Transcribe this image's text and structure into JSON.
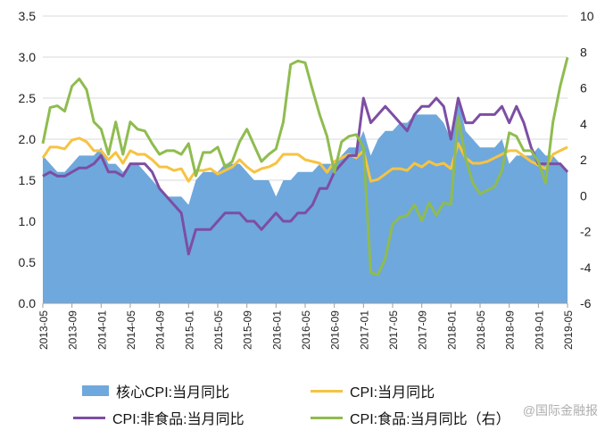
{
  "chart_data": {
    "type": "line",
    "categories": [
      "2013-05",
      "2013-06",
      "2013-07",
      "2013-08",
      "2013-09",
      "2013-10",
      "2013-11",
      "2013-12",
      "2014-01",
      "2014-02",
      "2014-03",
      "2014-04",
      "2014-05",
      "2014-06",
      "2014-07",
      "2014-08",
      "2014-09",
      "2014-10",
      "2014-11",
      "2014-12",
      "2015-01",
      "2015-02",
      "2015-03",
      "2015-04",
      "2015-05",
      "2015-06",
      "2015-07",
      "2015-08",
      "2015-09",
      "2015-10",
      "2015-11",
      "2015-12",
      "2016-01",
      "2016-02",
      "2016-03",
      "2016-04",
      "2016-05",
      "2016-06",
      "2016-07",
      "2016-08",
      "2016-09",
      "2016-10",
      "2016-11",
      "2016-12",
      "2017-01",
      "2017-02",
      "2017-03",
      "2017-04",
      "2017-05",
      "2017-06",
      "2017-07",
      "2017-08",
      "2017-09",
      "2017-10",
      "2017-11",
      "2017-12",
      "2018-01",
      "2018-02",
      "2018-03",
      "2018-04",
      "2018-05",
      "2018-06",
      "2018-07",
      "2018-08",
      "2018-09",
      "2018-10",
      "2018-11",
      "2018-12",
      "2019-01",
      "2019-02",
      "2019-03",
      "2019-04",
      "2019-05"
    ],
    "x_tick_labels": [
      "2013-05",
      "2013-09",
      "2014-01",
      "2014-05",
      "2014-09",
      "2015-01",
      "2015-05",
      "2015-09",
      "2016-01",
      "2016-05",
      "2016-09",
      "2017-01",
      "2017-05",
      "2017-09",
      "2018-01",
      "2018-05",
      "2018-09",
      "2019-01",
      "2019-05"
    ],
    "y_left": {
      "range": [
        0,
        3.5
      ],
      "ticks": [
        "0.0",
        "0.5",
        "1.0",
        "1.5",
        "2.0",
        "2.5",
        "3.0",
        "3.5"
      ]
    },
    "y_right": {
      "range": [
        -6,
        10
      ],
      "ticks": [
        "-6",
        "-4",
        "-2",
        "0",
        "2",
        "4",
        "6",
        "8",
        "10"
      ]
    },
    "grid": "horizontal",
    "legend_position": "bottom",
    "series": [
      {
        "name": "核心CPI:当月同比",
        "kind": "area",
        "axis": "left",
        "color": "#6fa8dc",
        "values": [
          1.8,
          1.7,
          1.6,
          1.6,
          1.7,
          1.8,
          1.8,
          1.8,
          1.9,
          1.7,
          1.7,
          1.6,
          1.7,
          1.7,
          1.6,
          1.5,
          1.4,
          1.3,
          1.3,
          1.3,
          1.2,
          1.5,
          1.6,
          1.6,
          1.6,
          1.7,
          1.7,
          1.7,
          1.6,
          1.5,
          1.5,
          1.5,
          1.3,
          1.5,
          1.5,
          1.6,
          1.6,
          1.6,
          1.7,
          1.7,
          1.7,
          1.8,
          1.9,
          1.9,
          2.1,
          1.8,
          2.0,
          2.1,
          2.1,
          2.2,
          2.2,
          2.3,
          2.3,
          2.3,
          2.3,
          2.2,
          2.0,
          2.5,
          2.1,
          2.0,
          1.9,
          1.9,
          1.9,
          2.0,
          1.7,
          1.8,
          1.8,
          1.8,
          1.9,
          1.8,
          1.8,
          1.7,
          1.6
        ]
      },
      {
        "name": "CPI:当月同比",
        "kind": "line",
        "axis": "right",
        "color": "#f6c342",
        "values": [
          2.1,
          2.7,
          2.7,
          2.6,
          3.1,
          3.2,
          3.0,
          2.5,
          2.5,
          2.0,
          2.4,
          1.8,
          2.5,
          2.3,
          2.3,
          2.0,
          1.6,
          1.6,
          1.4,
          1.5,
          0.8,
          1.4,
          1.4,
          1.5,
          1.2,
          1.4,
          1.6,
          2.0,
          1.6,
          1.3,
          1.5,
          1.6,
          1.8,
          2.3,
          2.3,
          2.3,
          2.0,
          1.9,
          1.8,
          1.3,
          1.9,
          2.1,
          2.3,
          2.1,
          2.5,
          0.8,
          0.9,
          1.2,
          1.5,
          1.5,
          1.4,
          1.8,
          1.6,
          1.9,
          1.7,
          1.8,
          1.5,
          2.9,
          2.1,
          1.8,
          1.8,
          1.9,
          2.1,
          2.3,
          2.5,
          2.5,
          2.2,
          1.9,
          1.7,
          1.5,
          2.3,
          2.5,
          2.7
        ]
      },
      {
        "name": "CPI:非食品:当月同比",
        "kind": "line",
        "axis": "left",
        "color": "#7d4ea3",
        "values": [
          1.55,
          1.6,
          1.55,
          1.55,
          1.6,
          1.65,
          1.65,
          1.7,
          1.8,
          1.6,
          1.6,
          1.55,
          1.7,
          1.7,
          1.7,
          1.6,
          1.4,
          1.3,
          1.2,
          1.1,
          0.6,
          0.9,
          0.9,
          0.9,
          1.0,
          1.1,
          1.1,
          1.1,
          1.0,
          1.0,
          0.9,
          1.0,
          1.1,
          1.0,
          1.0,
          1.1,
          1.1,
          1.2,
          1.4,
          1.4,
          1.6,
          1.7,
          1.8,
          1.8,
          2.5,
          2.2,
          2.3,
          2.4,
          2.3,
          2.2,
          2.1,
          2.3,
          2.4,
          2.4,
          2.5,
          2.4,
          2.0,
          2.5,
          2.2,
          2.2,
          2.3,
          2.3,
          2.3,
          2.4,
          2.2,
          2.4,
          2.2,
          1.9,
          1.7,
          1.7,
          1.7,
          1.7,
          1.6
        ]
      },
      {
        "name": "CPI:食品:当月同比（右）",
        "kind": "line",
        "axis": "right",
        "color": "#8fbc4f",
        "values": [
          2.9,
          4.9,
          5.0,
          4.7,
          6.1,
          6.5,
          5.9,
          4.1,
          3.7,
          2.3,
          4.1,
          2.3,
          4.1,
          3.7,
          3.6,
          2.9,
          2.3,
          2.5,
          2.5,
          2.3,
          2.9,
          1.1,
          2.4,
          2.4,
          2.7,
          1.6,
          1.9,
          3.0,
          3.7,
          2.8,
          1.9,
          2.3,
          2.6,
          4.1,
          7.3,
          7.5,
          7.4,
          5.9,
          4.5,
          3.3,
          1.3,
          3.0,
          3.3,
          3.4,
          2.7,
          -4.3,
          -4.4,
          -3.5,
          -1.6,
          -1.2,
          -1.1,
          -0.5,
          -1.4,
          -0.4,
          -1.1,
          -0.4,
          -0.5,
          4.4,
          2.1,
          0.7,
          0.1,
          0.3,
          0.5,
          1.4,
          3.5,
          3.3,
          2.5,
          2.5,
          1.9,
          0.7,
          4.1,
          6.1,
          7.7
        ]
      }
    ]
  },
  "legend": {
    "item1": "核心CPI:当月同比",
    "item2": "CPI:当月同比",
    "item3": "CPI:非食品:当月同比",
    "item4": "CPI:食品:当月同比（右）"
  },
  "watermark": "@国际金融报"
}
